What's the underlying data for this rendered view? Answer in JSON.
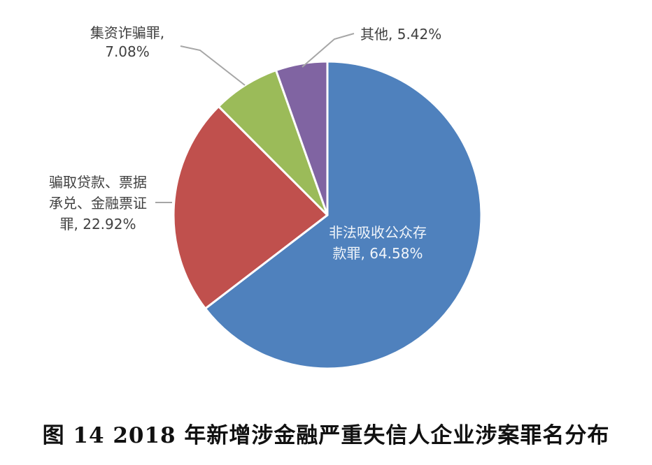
{
  "chart_data": {
    "type": "pie",
    "slices": [
      {
        "label_lines": [
          "非法吸收公众存",
          "款罪, 64.58%"
        ],
        "value": 64.58,
        "color": "#4f81bd"
      },
      {
        "label_lines": [
          "骗取贷款、票据",
          "承兑、金融票证",
          "罪, 22.92%"
        ],
        "value": 22.92,
        "color": "#c0504d"
      },
      {
        "label_lines": [
          "集资诈骗罪,",
          "7.08%"
        ],
        "value": 7.08,
        "color": "#9bbb59"
      },
      {
        "label_lines": [
          "其他, 5.42%"
        ],
        "value": 5.42,
        "color": "#8064a2"
      }
    ],
    "start_position": "12 o'clock, clockwise"
  },
  "caption": "图 14   2018 年新增涉金融严重失信人企业涉案罪名分布"
}
